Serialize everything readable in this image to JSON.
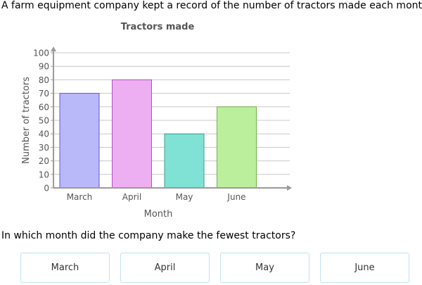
{
  "intro": "A farm equipment company kept a record of the number of tractors made each month.",
  "question": "In which month did the company make the fewest tractors?",
  "choices": [
    "March",
    "April",
    "May",
    "June"
  ],
  "colors": {
    "bars": [
      "#b9b9f9",
      "#eeaef2",
      "#7fe2d4",
      "#bbef9c"
    ],
    "bar_borders": [
      "#5c5cdb",
      "#b350bf",
      "#3b9e92",
      "#6fb245"
    ],
    "gridline": "#c8c8c8",
    "axis": "#9a9a9a",
    "text": "#555555",
    "choice_border": "#bfe3ee"
  },
  "chart_data": {
    "type": "bar",
    "title": "Tractors made",
    "xlabel": "Month",
    "ylabel": "Number of tractors",
    "categories": [
      "March",
      "April",
      "May",
      "June"
    ],
    "values": [
      70,
      80,
      40,
      60
    ],
    "ylim": [
      0,
      100
    ],
    "yticks": [
      0,
      10,
      20,
      30,
      40,
      50,
      60,
      70,
      80,
      90,
      100
    ],
    "grid": true,
    "legend": "none"
  }
}
